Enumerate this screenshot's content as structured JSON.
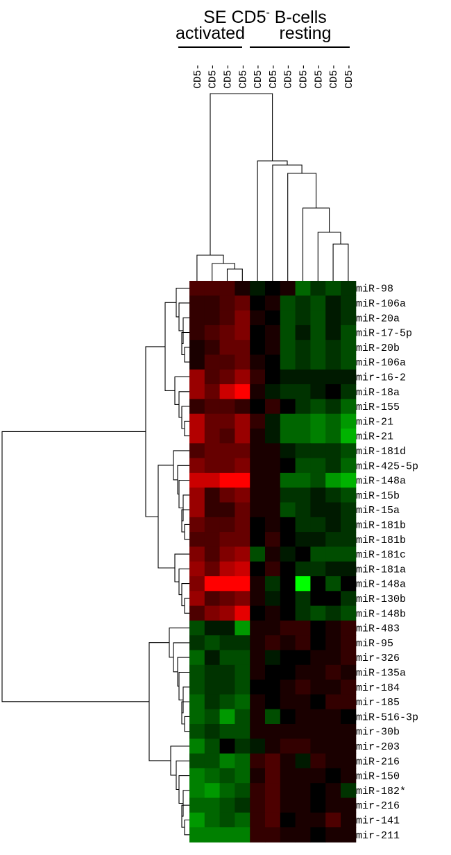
{
  "chart_data": {
    "type": "heatmap",
    "title_parts": {
      "prefix": "SE CD5",
      "superscript": "-",
      "suffix": " B-cells"
    },
    "groups": [
      {
        "label": "activated",
        "columns": [
          0,
          1,
          2,
          3
        ]
      },
      {
        "label": "resting",
        "columns": [
          4,
          5,
          6,
          7,
          8,
          9,
          10
        ]
      }
    ],
    "columns": [
      "CD5-",
      "CD5-",
      "CD5-",
      "CD5-",
      "CD5-",
      "CD5-",
      "CD5-",
      "CD5-",
      "CD5-",
      "CD5-",
      "CD5-"
    ],
    "rows": [
      "miR-98",
      "miR-106a",
      "miR-20a",
      "miR-17-5p",
      "miR-20b",
      "miR-106a",
      "mir-16-2",
      "miR-18a",
      "miR-155",
      "miR-21",
      "miR-21",
      "miR-181d",
      "miR-425-5p",
      "miR-148a",
      "miR-15b",
      "miR-15a",
      "miR-181b",
      "miR-181b",
      "miR-181c",
      "miR-181a",
      "miR-148a",
      "miR-130b",
      "miR-148b",
      "miR-483",
      "miR-95",
      "mir-326",
      "miR-135a",
      "mir-184",
      "mir-185",
      "miR-516-3p",
      "mir-30b",
      "mir-203",
      "miR-216",
      "miR-150",
      "miR-182*",
      "mir-216",
      "mir-141",
      "mir-211"
    ],
    "color_scale": {
      "low": "#00ff00",
      "mid": "#000000",
      "high": "#ff0000",
      "range": [
        -1,
        1
      ]
    },
    "values": [
      [
        0.3,
        0.3,
        0.3,
        0.1,
        -0.1,
        0,
        0.1,
        -0.4,
        -0.2,
        -0.3,
        -0.2
      ],
      [
        0.2,
        0.2,
        0.3,
        0.4,
        0,
        0.1,
        -0.3,
        -0.2,
        -0.3,
        -0.1,
        -0.2
      ],
      [
        0.2,
        0.2,
        0.3,
        0.5,
        0.1,
        0,
        -0.3,
        -0.2,
        -0.3,
        -0.1,
        -0.2
      ],
      [
        0.2,
        0.3,
        0.4,
        0.5,
        0,
        0.1,
        -0.3,
        -0.1,
        -0.3,
        -0.1,
        -0.3
      ],
      [
        0.1,
        0.2,
        0.4,
        0.4,
        0,
        0.1,
        -0.3,
        -0.2,
        -0.3,
        -0.2,
        -0.3
      ],
      [
        0.1,
        0.3,
        0.3,
        0.4,
        0.1,
        0,
        -0.3,
        -0.2,
        -0.3,
        -0.2,
        -0.3
      ],
      [
        0.6,
        0.3,
        0.4,
        0.6,
        0.2,
        0,
        -0.1,
        -0.1,
        -0.1,
        -0.1,
        -0.1
      ],
      [
        0.6,
        0.4,
        0.8,
        1,
        0.1,
        -0.1,
        -0.2,
        -0.2,
        -0.1,
        0,
        -0.2
      ],
      [
        0.2,
        0.3,
        0.3,
        0.2,
        0,
        0.2,
        0,
        -0.2,
        -0.3,
        -0.2,
        -0.4
      ],
      [
        0.7,
        0.4,
        0.4,
        0.6,
        0.2,
        -0.1,
        -0.4,
        -0.4,
        -0.5,
        -0.4,
        -0.6
      ],
      [
        0.7,
        0.4,
        0.3,
        0.6,
        0.1,
        -0.1,
        -0.4,
        -0.4,
        -0.5,
        -0.4,
        -0.7
      ],
      [
        0.3,
        0.4,
        0.4,
        0.4,
        0.1,
        0.1,
        -0.1,
        -0.2,
        -0.2,
        -0.2,
        -0.3
      ],
      [
        0.5,
        0.4,
        0.4,
        0.5,
        0.1,
        0.1,
        0,
        -0.3,
        -0.3,
        -0.2,
        -0.4
      ],
      [
        0.8,
        0.8,
        1,
        1,
        0.1,
        0.1,
        -0.4,
        -0.4,
        -0.3,
        -0.6,
        -0.7
      ],
      [
        0.6,
        0.2,
        0.4,
        0.5,
        0.1,
        0.1,
        -0.2,
        -0.2,
        -0.1,
        -0.2,
        -0.3
      ],
      [
        0.6,
        0.2,
        0.2,
        0.4,
        0.1,
        0.1,
        -0.3,
        -0.2,
        -0.1,
        -0.1,
        -0.2
      ],
      [
        0.4,
        0.3,
        0.3,
        0.4,
        0,
        0.1,
        0,
        -0.2,
        -0.2,
        -0.1,
        -0.2
      ],
      [
        0.3,
        0.3,
        0.4,
        0.4,
        0,
        0.2,
        0,
        -0.1,
        -0.1,
        -0.2,
        -0.2
      ],
      [
        0.5,
        0.3,
        0.5,
        0.6,
        -0.3,
        0.1,
        -0.1,
        0,
        -0.3,
        -0.3,
        -0.3
      ],
      [
        0.6,
        0.4,
        0.7,
        0.8,
        0,
        0.2,
        0,
        -0.2,
        -0.2,
        -0.1,
        -0.1
      ],
      [
        0.5,
        1,
        1,
        1,
        0.1,
        -0.2,
        0,
        -1,
        0,
        -0.3,
        0
      ],
      [
        0.6,
        0.3,
        0.4,
        0.5,
        0.1,
        -0.1,
        0,
        -0.2,
        0,
        0,
        -0.2
      ],
      [
        0.3,
        0.5,
        0.6,
        0.9,
        0,
        0.1,
        0,
        -0.2,
        -0.3,
        -0.2,
        -0.3
      ],
      [
        -0.3,
        -0.1,
        -0.1,
        -0.6,
        0.1,
        0.1,
        0.2,
        0.2,
        0,
        0.1,
        0.2
      ],
      [
        -0.2,
        -0.3,
        -0.2,
        -0.2,
        0.1,
        0.2,
        0.1,
        0.2,
        0,
        0.1,
        0.2
      ],
      [
        -0.4,
        -0.1,
        -0.3,
        -0.3,
        0.1,
        -0.1,
        0,
        0,
        0.1,
        0.1,
        0.2
      ],
      [
        -0.3,
        -0.2,
        -0.2,
        -0.3,
        0.1,
        0,
        0,
        0.1,
        0.1,
        0.2,
        0.1
      ],
      [
        -0.3,
        -0.2,
        -0.2,
        -0.3,
        0,
        0,
        0.1,
        0.2,
        0.1,
        0.1,
        0.2
      ],
      [
        -0.4,
        -0.2,
        -0.3,
        -0.4,
        0.1,
        0,
        0.1,
        0.1,
        0,
        0.2,
        0.2
      ],
      [
        -0.4,
        -0.3,
        -0.6,
        -0.3,
        0.1,
        -0.3,
        0,
        0.1,
        0.1,
        0.1,
        0
      ],
      [
        -0.3,
        -0.2,
        -0.3,
        -0.3,
        0.1,
        0.1,
        0.1,
        0.1,
        0.1,
        0.1,
        0.1
      ],
      [
        -0.5,
        -0.3,
        0,
        -0.2,
        -0.1,
        0.1,
        0.2,
        0.2,
        0.1,
        0.1,
        0.1
      ],
      [
        -0.3,
        -0.3,
        -0.5,
        -0.4,
        0.2,
        0.3,
        0.1,
        -0.1,
        0.2,
        0.1,
        0.1
      ],
      [
        -0.5,
        -0.4,
        -0.3,
        -0.4,
        0.1,
        0.3,
        0.1,
        0.1,
        0.1,
        0,
        0.1
      ],
      [
        -0.5,
        -0.6,
        -0.4,
        -0.3,
        0.2,
        0.3,
        0.1,
        0.1,
        0,
        0.1,
        -0.2
      ],
      [
        -0.4,
        -0.4,
        -0.3,
        -0.2,
        0.2,
        0.3,
        0.1,
        0.1,
        0,
        0.1,
        0.1
      ],
      [
        -0.6,
        -0.4,
        -0.3,
        -0.4,
        0.2,
        0.3,
        0,
        0.1,
        0.1,
        0.3,
        0.1
      ],
      [
        -0.5,
        -0.5,
        -0.5,
        -0.5,
        0.2,
        0.2,
        0.1,
        0.1,
        0,
        0.1,
        0.1
      ]
    ]
  }
}
